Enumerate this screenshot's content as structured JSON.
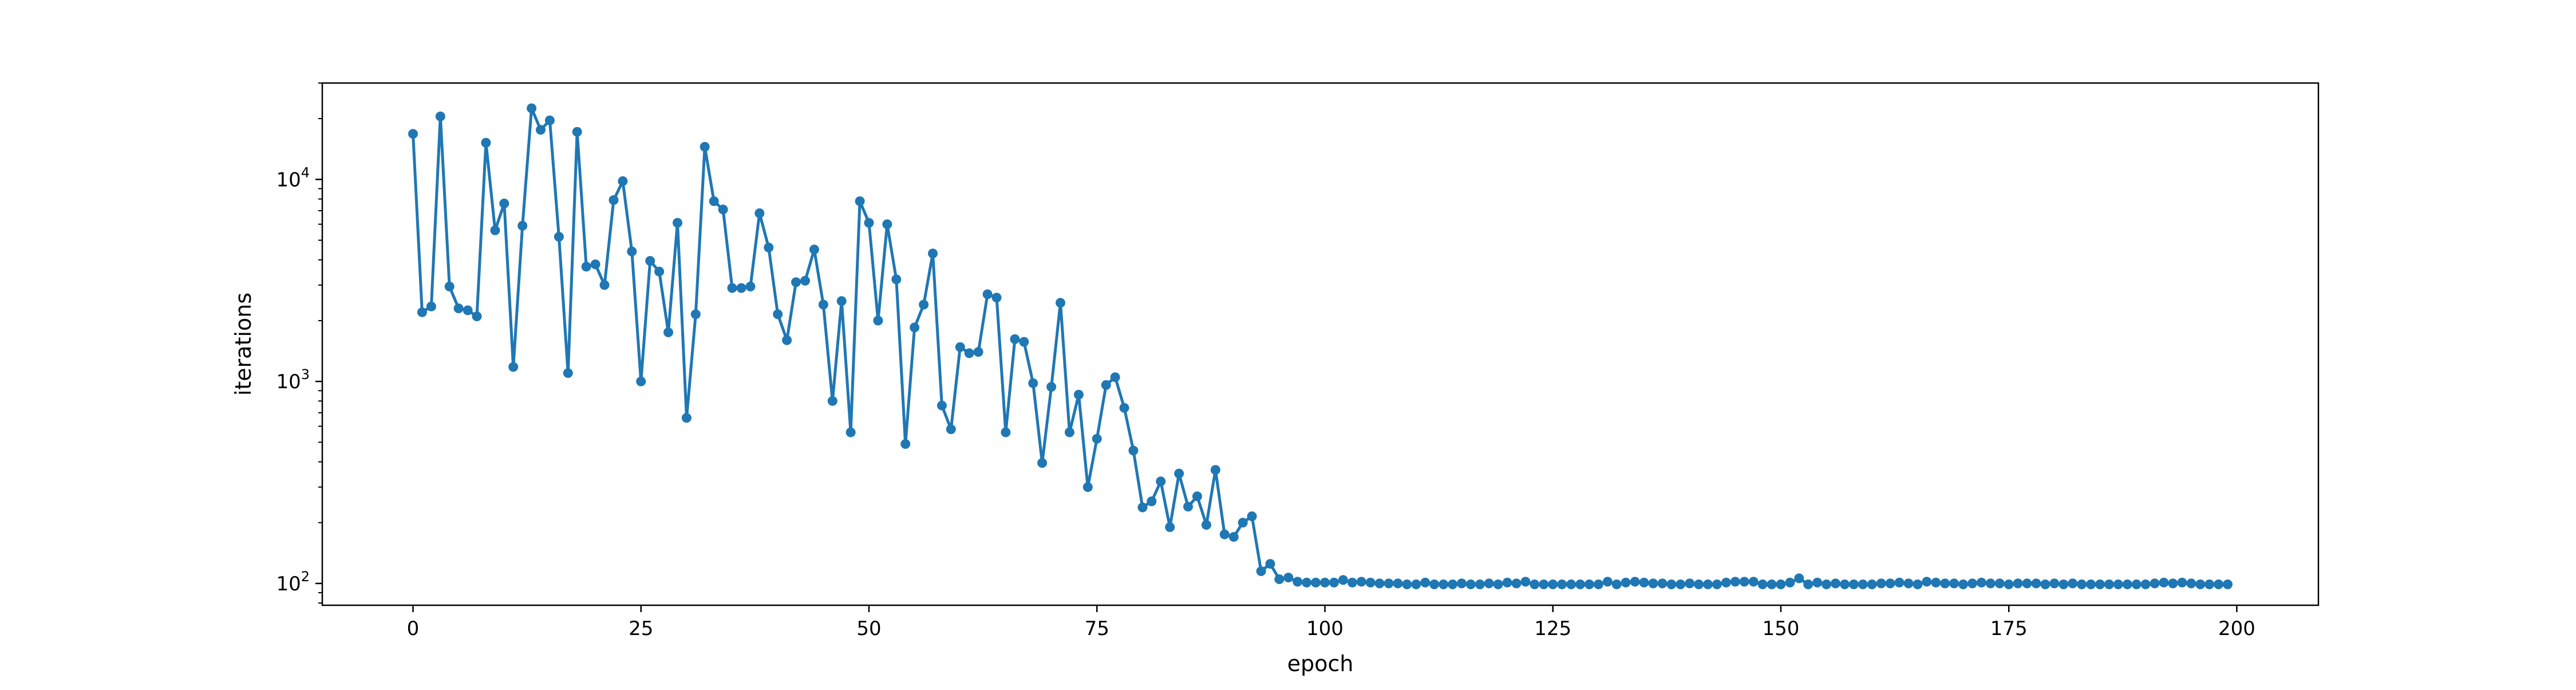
{
  "chart_data": {
    "type": "line",
    "title": "",
    "xlabel": "epoch",
    "ylabel": "iterations",
    "yscale": "log",
    "xlim": [
      -9.95,
      208.95
    ],
    "ylim": [
      78,
      30000
    ],
    "grid": false,
    "legend": "none",
    "colors": {
      "series": "#1f77b4",
      "axes": "#000000",
      "background": "#ffffff"
    },
    "x_ticks": [
      {
        "value": 0,
        "label": "0"
      },
      {
        "value": 25,
        "label": "25"
      },
      {
        "value": 50,
        "label": "50"
      },
      {
        "value": 75,
        "label": "75"
      },
      {
        "value": 100,
        "label": "100"
      },
      {
        "value": 125,
        "label": "125"
      },
      {
        "value": 150,
        "label": "150"
      },
      {
        "value": 175,
        "label": "175"
      },
      {
        "value": 200,
        "label": "200"
      }
    ],
    "y_ticks": [
      {
        "value": 100,
        "base": "10",
        "exp": "2"
      },
      {
        "value": 1000,
        "base": "10",
        "exp": "3"
      },
      {
        "value": 10000,
        "base": "10",
        "exp": "4"
      }
    ],
    "series": [
      {
        "marker": "circle",
        "x_start": 0,
        "x_step": 1,
        "values": [
          16800,
          2200,
          2350,
          20500,
          2950,
          2300,
          2250,
          2100,
          15200,
          5600,
          7600,
          1180,
          5900,
          22500,
          17600,
          19600,
          5200,
          1100,
          17200,
          3700,
          3800,
          3000,
          7900,
          9800,
          4400,
          1000,
          3950,
          3500,
          1750,
          6100,
          660,
          2150,
          14500,
          7800,
          7100,
          2900,
          2900,
          2950,
          6800,
          4600,
          2150,
          1600,
          3100,
          3150,
          4500,
          2400,
          800,
          2500,
          560,
          7800,
          6100,
          2000,
          6000,
          3200,
          490,
          1850,
          2400,
          4300,
          760,
          580,
          1480,
          1380,
          1400,
          2700,
          2600,
          560,
          1620,
          1570,
          980,
          395,
          940,
          2450,
          560,
          860,
          300,
          520,
          960,
          1050,
          740,
          455,
          238,
          255,
          320,
          190,
          350,
          240,
          270,
          195,
          365,
          175,
          170,
          200,
          215,
          115,
          125,
          105,
          107,
          102,
          101,
          101,
          101,
          101,
          104,
          101,
          102,
          101,
          100,
          100,
          100,
          99,
          99,
          101,
          99,
          99,
          99,
          100,
          99,
          99,
          100,
          99,
          101,
          100,
          102,
          99,
          99,
          99,
          99,
          99,
          99,
          99,
          99,
          102,
          99,
          101,
          102,
          101,
          100,
          100,
          99,
          99,
          100,
          99,
          99,
          99,
          101,
          102,
          102,
          102,
          99,
          99,
          99,
          101,
          106,
          99,
          101,
          99,
          100,
          99,
          99,
          99,
          99,
          100,
          100,
          101,
          100,
          99,
          102,
          101,
          100,
          100,
          99,
          100,
          101,
          100,
          100,
          99,
          100,
          100,
          100,
          99,
          100,
          99,
          100,
          99,
          99,
          99,
          99,
          99,
          99,
          99,
          99,
          100,
          101,
          100,
          101,
          100,
          99,
          99,
          99,
          99
        ]
      }
    ]
  }
}
